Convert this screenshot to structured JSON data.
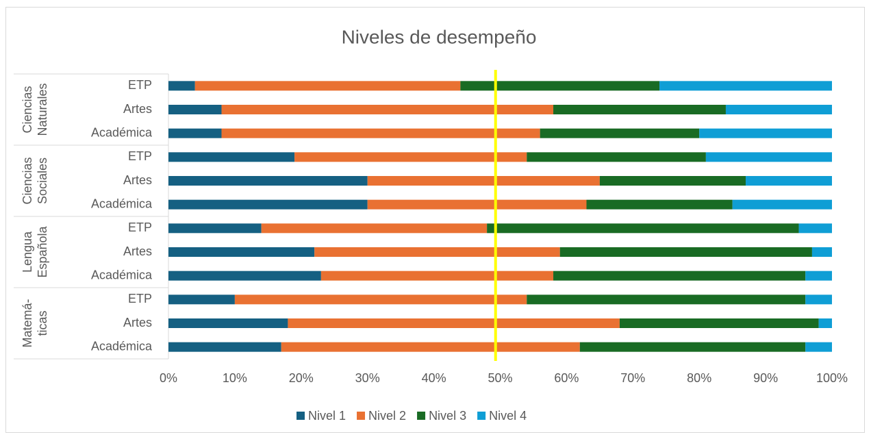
{
  "chart_data": {
    "type": "bar",
    "orientation": "horizontal",
    "stacked": "percent",
    "title": "Niveles de desempeño",
    "groups": [
      {
        "label": [
          "Ciencias",
          "Naturales"
        ],
        "categories": [
          "ETP",
          "Artes",
          "Académica"
        ]
      },
      {
        "label": [
          "Ciencias",
          "Sociales"
        ],
        "categories": [
          "ETP",
          "Artes",
          "Académica"
        ]
      },
      {
        "label": [
          "Lengua",
          "Española"
        ],
        "categories": [
          "ETP",
          "Artes",
          "Académica"
        ]
      },
      {
        "label": [
          "Matemá-",
          "ticas"
        ],
        "categories": [
          "ETP",
          "Artes",
          "Académica"
        ]
      }
    ],
    "series": [
      {
        "name": "Nivel 1",
        "color": "#156082",
        "values": [
          4,
          8,
          8,
          19,
          30,
          30,
          14,
          22,
          23,
          10,
          18,
          17
        ]
      },
      {
        "name": "Nivel 2",
        "color": "#e97132",
        "values": [
          40,
          50,
          48,
          35,
          35,
          33,
          34,
          37,
          35,
          44,
          50,
          45
        ]
      },
      {
        "name": "Nivel 3",
        "color": "#196b24",
        "values": [
          30,
          26,
          24,
          27,
          22,
          22,
          47,
          38,
          38,
          42,
          30,
          34
        ]
      },
      {
        "name": "Nivel 4",
        "color": "#0f9ed5",
        "values": [
          26,
          16,
          20,
          19,
          13,
          15,
          5,
          3,
          4,
          4,
          2,
          4
        ]
      }
    ],
    "xlim": [
      0,
      100
    ],
    "xticks": [
      {
        "value": 0,
        "label": "0%"
      },
      {
        "value": 10,
        "label": "10%"
      },
      {
        "value": 20,
        "label": "20%"
      },
      {
        "value": 30,
        "label": "30%"
      },
      {
        "value": 40,
        "label": "40%"
      },
      {
        "value": 50,
        "label": "50%"
      },
      {
        "value": 60,
        "label": "60%"
      },
      {
        "value": 70,
        "label": "70%"
      },
      {
        "value": 80,
        "label": "80%"
      },
      {
        "value": 90,
        "label": "90%"
      },
      {
        "value": 100,
        "label": "100%"
      }
    ],
    "reference_line": {
      "value": 49.3,
      "color": "#ffff00"
    },
    "legend": "bottom"
  }
}
